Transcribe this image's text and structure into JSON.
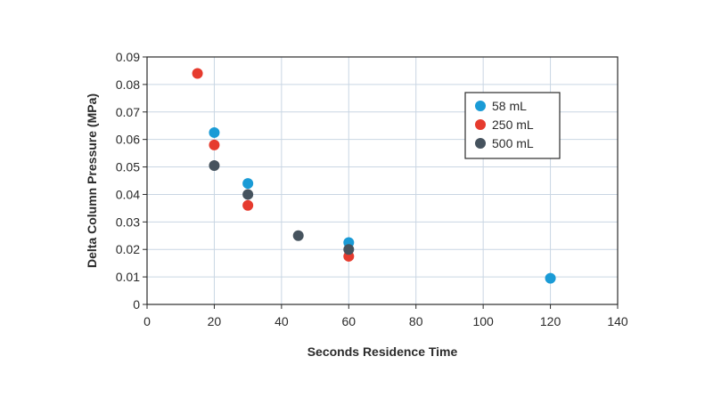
{
  "chart_data": {
    "type": "scatter",
    "xlabel": "Seconds Residence Time",
    "ylabel": "Delta Column Pressure (MPa)",
    "xlim": [
      0,
      140
    ],
    "ylim": [
      0,
      0.09
    ],
    "xticks": [
      0,
      20,
      40,
      60,
      80,
      100,
      120,
      140
    ],
    "yticks": [
      0,
      0.01,
      0.02,
      0.03,
      0.04,
      0.05,
      0.06,
      0.07,
      0.08,
      0.09
    ],
    "xtick_labels": [
      "0",
      "20",
      "40",
      "60",
      "80",
      "100",
      "120",
      "140"
    ],
    "ytick_labels": [
      "0",
      "0.01",
      "0.02",
      "0.03",
      "0.04",
      "0.05",
      "0.06",
      "0.07",
      "0.08",
      "0.09"
    ],
    "grid": true,
    "legend_position": "top-right",
    "series": [
      {
        "name": "58 mL",
        "color": "#1a9bd6",
        "points": [
          [
            20,
            0.0625
          ],
          [
            30,
            0.044
          ],
          [
            60,
            0.0225
          ],
          [
            120,
            0.0095
          ]
        ]
      },
      {
        "name": "250 mL",
        "color": "#e63b2e",
        "points": [
          [
            15,
            0.084
          ],
          [
            20,
            0.058
          ],
          [
            30,
            0.036
          ],
          [
            60,
            0.0175
          ]
        ]
      },
      {
        "name": "500 mL",
        "color": "#46535e",
        "points": [
          [
            20,
            0.0505
          ],
          [
            30,
            0.04
          ],
          [
            45,
            0.025
          ],
          [
            60,
            0.02
          ]
        ]
      }
    ]
  }
}
